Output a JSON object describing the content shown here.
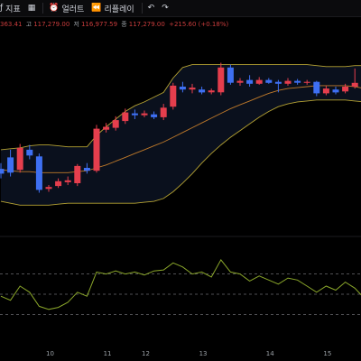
{
  "toolbar": {
    "indicator_label": "지표",
    "alert_label": "얼러트",
    "replay_label": "리플레이"
  },
  "quote": {
    "open_partial": "363.41",
    "high_label": "고",
    "high_value": "117,279.00",
    "low_label": "저",
    "low_value": "116,977.59",
    "close_label": "종",
    "close_value": "117,279.00",
    "change": "+215.60 (+0.18%)"
  },
  "x_axis": {
    "ticks": [
      "10",
      "11",
      "12",
      "13",
      "14",
      "15"
    ]
  },
  "colors": {
    "up": "#e53e4d",
    "down": "#3e6ff2",
    "band": "#b5a233",
    "rsi": "#8aa62a"
  },
  "chart_data": {
    "type": "candlestick",
    "x_ticks": [
      "10",
      "11",
      "12",
      "13",
      "14",
      "15"
    ],
    "candles": [
      {
        "o": 109.0,
        "c": 108.5,
        "h": 109.6,
        "l": 108.0
      },
      {
        "o": 110.2,
        "c": 108.6,
        "h": 111.0,
        "l": 108.2
      },
      {
        "o": 108.9,
        "c": 111.2,
        "h": 111.6,
        "l": 108.6
      },
      {
        "o": 111.0,
        "c": 110.4,
        "h": 111.5,
        "l": 110.0
      },
      {
        "o": 110.3,
        "c": 106.8,
        "h": 110.6,
        "l": 106.5
      },
      {
        "o": 106.9,
        "c": 107.1,
        "h": 107.3,
        "l": 106.6
      },
      {
        "o": 107.2,
        "c": 107.7,
        "h": 108.0,
        "l": 107.0
      },
      {
        "o": 107.6,
        "c": 107.8,
        "h": 108.2,
        "l": 107.3
      },
      {
        "o": 107.5,
        "c": 109.3,
        "h": 109.5,
        "l": 107.2
      },
      {
        "o": 109.1,
        "c": 108.8,
        "h": 109.6,
        "l": 108.5
      },
      {
        "o": 108.8,
        "c": 113.2,
        "h": 113.6,
        "l": 108.6
      },
      {
        "o": 113.1,
        "c": 113.4,
        "h": 113.8,
        "l": 112.8
      },
      {
        "o": 113.3,
        "c": 114.1,
        "h": 114.5,
        "l": 113.0
      },
      {
        "o": 114.0,
        "c": 114.9,
        "h": 115.3,
        "l": 113.7
      },
      {
        "o": 114.8,
        "c": 114.6,
        "h": 115.2,
        "l": 114.2
      },
      {
        "o": 114.6,
        "c": 114.8,
        "h": 115.1,
        "l": 114.4
      },
      {
        "o": 114.7,
        "c": 114.4,
        "h": 115.0,
        "l": 114.2
      },
      {
        "o": 114.4,
        "c": 115.4,
        "h": 115.8,
        "l": 114.1
      },
      {
        "o": 115.5,
        "c": 117.7,
        "h": 118.0,
        "l": 115.2
      },
      {
        "o": 117.6,
        "c": 117.3,
        "h": 118.1,
        "l": 117.0
      },
      {
        "o": 117.3,
        "c": 117.5,
        "h": 117.9,
        "l": 116.9
      },
      {
        "o": 117.3,
        "c": 117.0,
        "h": 117.6,
        "l": 116.8
      },
      {
        "o": 117.0,
        "c": 117.2,
        "h": 117.4,
        "l": 116.8
      },
      {
        "o": 117.0,
        "c": 119.6,
        "h": 120.1,
        "l": 116.7
      },
      {
        "o": 119.6,
        "c": 118.0,
        "h": 119.9,
        "l": 117.8
      },
      {
        "o": 118.0,
        "c": 118.2,
        "h": 118.5,
        "l": 117.7
      },
      {
        "o": 118.3,
        "c": 117.9,
        "h": 118.8,
        "l": 117.6
      },
      {
        "o": 117.9,
        "c": 118.3,
        "h": 118.6,
        "l": 117.8
      },
      {
        "o": 118.3,
        "c": 118.0,
        "h": 118.5,
        "l": 117.9
      },
      {
        "o": 118.1,
        "c": 117.9,
        "h": 118.3,
        "l": 117.0
      },
      {
        "o": 117.9,
        "c": 118.2,
        "h": 118.5,
        "l": 117.7
      },
      {
        "o": 118.2,
        "c": 118.0,
        "h": 118.4,
        "l": 117.8
      },
      {
        "o": 118.0,
        "c": 118.1,
        "h": 118.3,
        "l": 117.8
      },
      {
        "o": 118.1,
        "c": 116.9,
        "h": 118.2,
        "l": 116.6
      },
      {
        "o": 116.9,
        "c": 117.4,
        "h": 117.7,
        "l": 116.7
      },
      {
        "o": 117.3,
        "c": 117.0,
        "h": 117.6,
        "l": 116.8
      },
      {
        "o": 117.1,
        "c": 117.6,
        "h": 117.9,
        "l": 116.9
      },
      {
        "o": 117.6,
        "c": 118.0,
        "h": 119.5,
        "l": 117.4
      },
      {
        "o": 117.9,
        "c": 116.6,
        "h": 118.2,
        "l": 116.3
      },
      {
        "o": 116.6,
        "c": 116.0,
        "h": 117.2,
        "l": 115.7
      }
    ],
    "bollinger": {
      "upper": [
        111.0,
        111.1,
        111.2,
        111.4,
        111.5,
        111.5,
        111.4,
        111.3,
        111.3,
        111.3,
        112.5,
        113.4,
        114.2,
        115.0,
        115.6,
        116.0,
        116.5,
        117.0,
        118.5,
        119.6,
        119.9,
        119.9,
        119.9,
        119.9,
        119.9,
        119.9,
        119.9,
        119.9,
        119.9,
        119.9,
        119.9,
        119.9,
        119.9,
        119.8,
        119.7,
        119.7,
        119.7,
        119.8,
        119.8,
        119.8
      ],
      "middle": [
        108.9,
        108.8,
        108.7,
        108.7,
        108.6,
        108.6,
        108.6,
        108.6,
        108.7,
        108.8,
        109.1,
        109.4,
        109.8,
        110.2,
        110.6,
        111.0,
        111.4,
        111.8,
        112.3,
        112.8,
        113.3,
        113.8,
        114.3,
        114.8,
        115.3,
        115.7,
        116.1,
        116.5,
        116.9,
        117.2,
        117.4,
        117.5,
        117.6,
        117.7,
        117.7,
        117.7,
        117.7,
        117.6,
        117.4,
        117.3
      ],
      "lower": [
        105.6,
        105.4,
        105.2,
        105.2,
        105.2,
        105.2,
        105.3,
        105.4,
        105.4,
        105.4,
        105.4,
        105.4,
        105.4,
        105.4,
        105.4,
        105.5,
        105.6,
        105.9,
        106.6,
        107.5,
        108.5,
        109.6,
        110.6,
        111.5,
        112.3,
        113.0,
        113.7,
        114.4,
        115.0,
        115.5,
        115.8,
        116.0,
        116.1,
        116.2,
        116.2,
        116.2,
        116.2,
        116.1,
        116.0,
        115.9
      ]
    },
    "rsi": [
      48,
      44,
      58,
      52,
      38,
      35,
      37,
      42,
      52,
      48,
      72,
      70,
      73,
      70,
      72,
      69,
      73,
      74,
      81,
      77,
      70,
      72,
      67,
      84,
      72,
      70,
      63,
      68,
      64,
      60,
      66,
      64,
      58,
      52,
      58,
      54,
      62,
      56,
      46,
      42
    ],
    "rsi_levels": [
      70,
      50,
      30
    ],
    "y_range": [
      104,
      121
    ]
  }
}
